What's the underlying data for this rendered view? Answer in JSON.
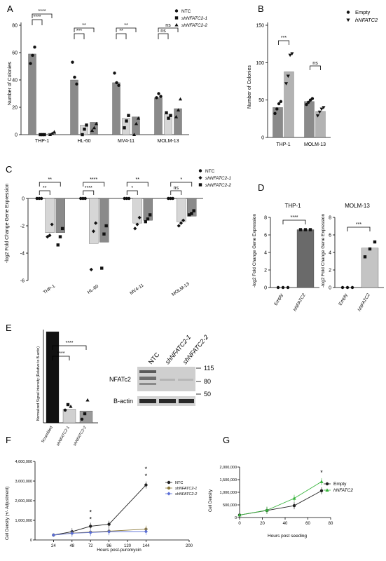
{
  "panel_labels": [
    "A",
    "B",
    "C",
    "D",
    "E",
    "F",
    "G"
  ],
  "significance": {
    "A": [
      "****",
      "****",
      "***",
      "**",
      "**",
      "**",
      "ns",
      "ns"
    ],
    "B": [
      "***",
      "ns"
    ],
    "C": [
      "**",
      "**",
      "****",
      "****",
      "**",
      "*",
      "*",
      "ns"
    ],
    "D": [
      "****",
      "***"
    ],
    "E": [
      "****",
      "****"
    ],
    "F": [
      "*",
      "*",
      "*",
      "*"
    ],
    "G": [
      "*"
    ]
  },
  "blot": {
    "lanes": [
      "NTC",
      "shNFATC2-1",
      "shNFATC2-2"
    ],
    "markers": [
      "115",
      "80",
      "50"
    ],
    "rows": [
      "NFATc2",
      "B-actin"
    ]
  },
  "chart_data": [
    {
      "panel": "A",
      "type": "bar",
      "ylabel": "Number of Colonies",
      "ylim": [
        0,
        80
      ],
      "yticks": [
        "0",
        "20",
        "40",
        "60",
        "80"
      ],
      "categories": [
        "THP-1",
        "HL-60",
        "MV4-11",
        "MOLM-13"
      ],
      "legend": [
        "NTC",
        "shNFATC2-1",
        "shNFATC2-2"
      ],
      "series": [
        {
          "name": "NTC",
          "values": [
            59,
            40,
            38,
            27
          ],
          "color": "#8a8a8a"
        },
        {
          "name": "shNFATC2-1",
          "values": [
            0,
            7,
            12,
            15
          ],
          "color": "#d6d6d6"
        },
        {
          "name": "shNFATC2-2",
          "values": [
            1,
            9,
            13,
            19
          ],
          "color": "#8a8a8a"
        }
      ]
    },
    {
      "panel": "B",
      "type": "bar",
      "ylabel": "Number of Colonies",
      "ylim": [
        0,
        150
      ],
      "yticks": [
        "0",
        "50",
        "100",
        "150"
      ],
      "categories": [
        "THP-1",
        "MOLM-13"
      ],
      "legend": [
        "Empty",
        "hNFATC2"
      ],
      "series": [
        {
          "name": "Empty",
          "values": [
            40,
            48
          ],
          "color": "#8a8a8a"
        },
        {
          "name": "hNFATC2",
          "values": [
            88,
            35
          ],
          "color": "#9a9a9a"
        }
      ]
    },
    {
      "panel": "C",
      "type": "bar",
      "ylabel": "-log2 Fold Change Gene Expression",
      "ylim": [
        -6,
        0
      ],
      "yticks": [
        "0",
        "-2",
        "-4",
        "-6"
      ],
      "categories": [
        "THP-1",
        "HL-60",
        "MV4-11",
        "MOLM-13"
      ],
      "legend": [
        "NTC",
        "shNFATC2-1",
        "shNFATC2-2"
      ],
      "series": [
        {
          "name": "NTC",
          "values": [
            0,
            0,
            0,
            0
          ],
          "color": "#8a8a8a"
        },
        {
          "name": "shNFATC2-1",
          "values": [
            -2.5,
            -3.3,
            -1.8,
            -1.7
          ],
          "color": "#d6d6d6"
        },
        {
          "name": "shNFATC2-2",
          "values": [
            -2.5,
            -3.2,
            -1.6,
            -1.3
          ],
          "color": "#8a8a8a"
        }
      ]
    },
    {
      "panel": "D",
      "type": "bar",
      "title": "THP-1",
      "ylabel": "-log2 Fold Change Gene Expression",
      "ylim": [
        0,
        8
      ],
      "yticks": [
        "0",
        "2",
        "4",
        "6",
        "8"
      ],
      "categories": [
        "Empty",
        "hNFATC2"
      ],
      "values": [
        0,
        6.6
      ]
    },
    {
      "panel": "D",
      "type": "bar",
      "title": "MOLM-13",
      "ylabel": "-log2 Fold Change Gene Expression",
      "ylim": [
        0,
        8
      ],
      "yticks": [
        "0",
        "2",
        "4",
        "6",
        "8"
      ],
      "categories": [
        "Empty",
        "hNFATC2"
      ],
      "values": [
        0,
        4.5
      ]
    },
    {
      "panel": "E",
      "type": "bar",
      "ylabel": "Normalized Signal Intensity (Relative to B-actin)",
      "categories": [
        "Scrambled",
        "shNFATC2-1",
        "shNFATC2-2"
      ],
      "values": [
        1.0,
        0.15,
        0.13
      ]
    },
    {
      "panel": "F",
      "type": "line",
      "xlabel": "Hours post-puromycin",
      "ylabel": "Cell Density (+/- Adjustment)",
      "xlim": [
        0,
        200
      ],
      "ylim": [
        0,
        4000000
      ],
      "xticks": [
        "24",
        "48",
        "72",
        "96",
        "120",
        "144",
        "200"
      ],
      "yticks": [
        "0",
        "1,000,000",
        "2,000,000",
        "3,000,000",
        "4,000,000"
      ],
      "legend": [
        "NTC",
        "shNFATC2-1",
        "shNFATC2-2"
      ],
      "series": [
        {
          "name": "NTC",
          "x": [
            24,
            48,
            72,
            96,
            144
          ],
          "y": [
            250000,
            420000,
            700000,
            800000,
            2800000
          ],
          "color": "#222222"
        },
        {
          "name": "shNFATC2-1",
          "x": [
            24,
            48,
            72,
            96,
            144
          ],
          "y": [
            250000,
            350000,
            400000,
            450000,
            550000
          ],
          "color": "#8c7a3c"
        },
        {
          "name": "shNFATC2-2",
          "x": [
            24,
            48,
            72,
            96,
            144
          ],
          "y": [
            250000,
            340000,
            380000,
            420000,
            430000
          ],
          "color": "#5a6ed6"
        }
      ]
    },
    {
      "panel": "G",
      "type": "line",
      "xlabel": "Hours post seeding",
      "ylabel": "Cell Density",
      "xlim": [
        0,
        80
      ],
      "ylim": [
        0,
        2000000
      ],
      "xticks": [
        "0",
        "20",
        "40",
        "60",
        "80"
      ],
      "yticks": [
        "0",
        "500,000",
        "1,000,000",
        "1,500,000",
        "2,000,000"
      ],
      "legend": [
        "Empty",
        "hNFATC2"
      ],
      "series": [
        {
          "name": "Empty",
          "x": [
            0,
            24,
            48,
            72
          ],
          "y": [
            100000,
            280000,
            470000,
            1060000
          ],
          "color": "#222222"
        },
        {
          "name": "hNFATC2",
          "x": [
            0,
            24,
            48,
            72
          ],
          "y": [
            100000,
            290000,
            760000,
            1420000
          ],
          "color": "#36b33a"
        }
      ]
    }
  ]
}
